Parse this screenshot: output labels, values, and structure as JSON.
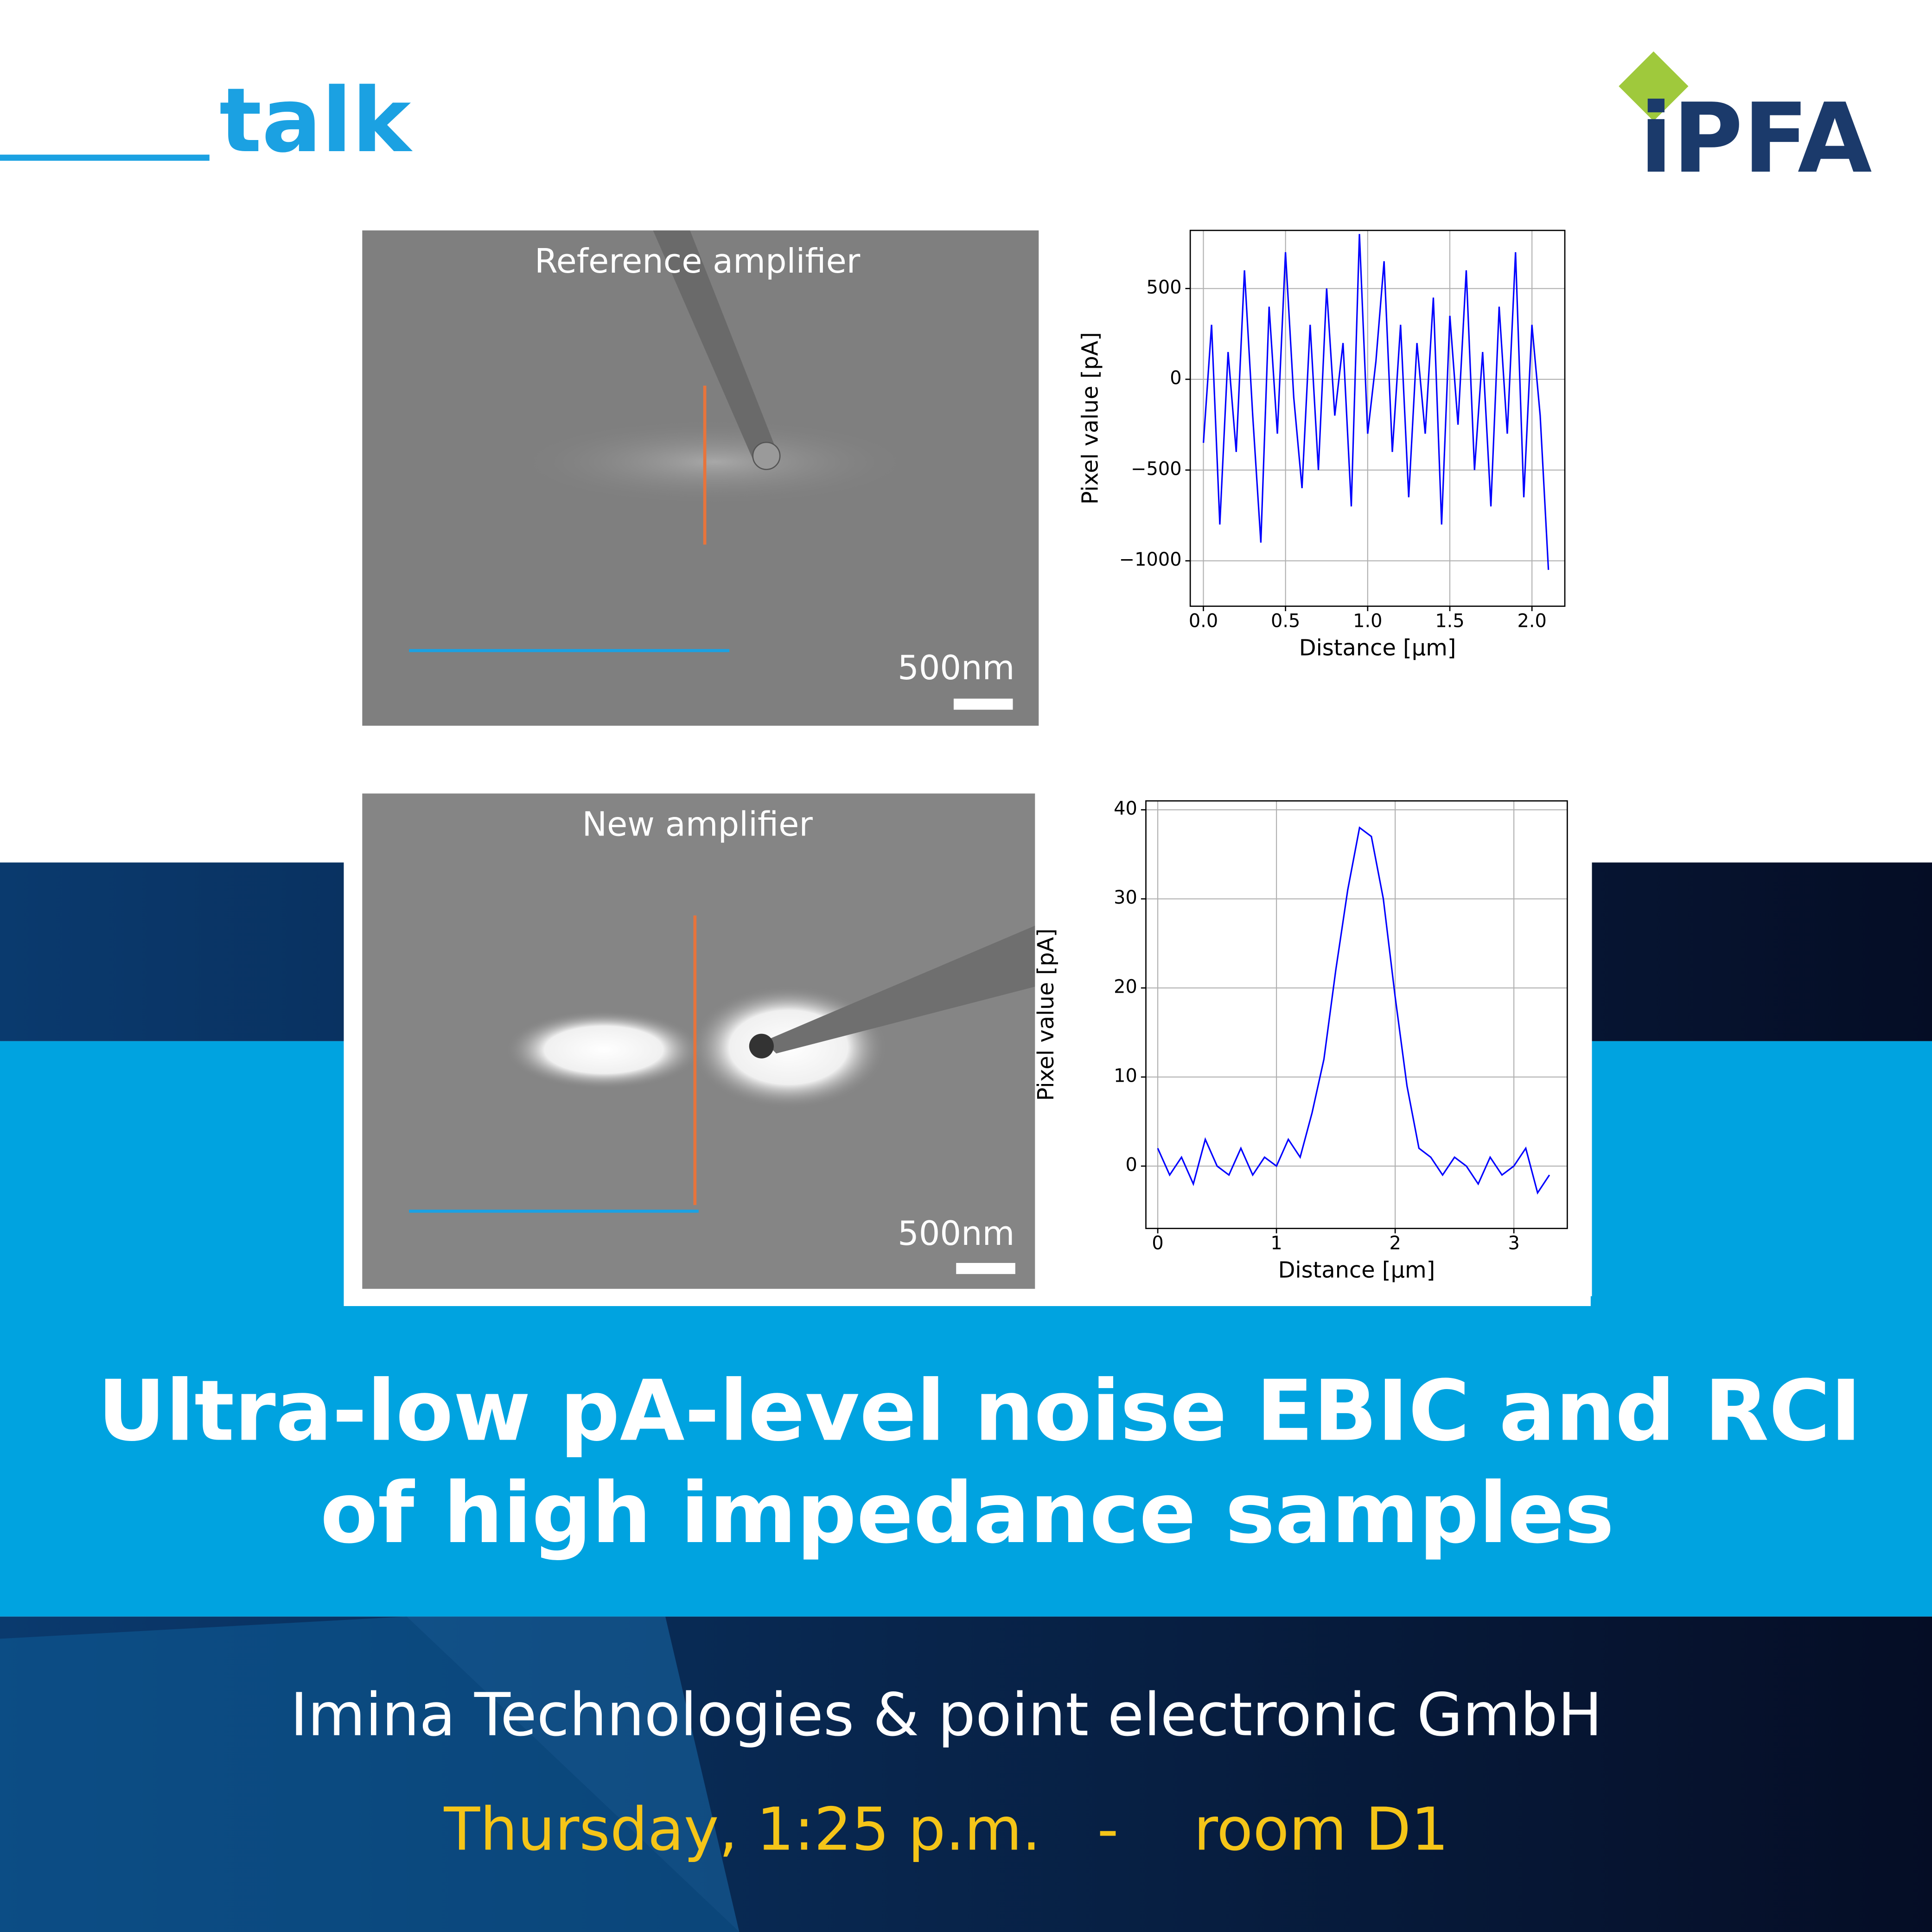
{
  "header": {
    "label": "talk",
    "logo": "iPFA"
  },
  "images": [
    {
      "caption": "Reference amplifier",
      "scale_bar": "500nm"
    },
    {
      "caption": "New amplifier",
      "scale_bar": "500nm"
    }
  ],
  "chart_data": [
    {
      "type": "line",
      "xlabel": "Distance [µm]",
      "ylabel": "Pixel value [pA]",
      "color": "#0000ff",
      "grid": true,
      "x": [
        0,
        0.05,
        0.1,
        0.15,
        0.2,
        0.25,
        0.3,
        0.35,
        0.4,
        0.45,
        0.5,
        0.55,
        0.6,
        0.65,
        0.7,
        0.75,
        0.8,
        0.85,
        0.9,
        0.95,
        1.0,
        1.05,
        1.1,
        1.15,
        1.2,
        1.25,
        1.3,
        1.35,
        1.4,
        1.45,
        1.5,
        1.55,
        1.6,
        1.65,
        1.7,
        1.75,
        1.8,
        1.85,
        1.9,
        1.95,
        2.0,
        2.05,
        2.1
      ],
      "values": [
        -350,
        300,
        -800,
        150,
        -400,
        600,
        -200,
        -900,
        400,
        -300,
        700,
        -100,
        -600,
        300,
        -500,
        500,
        -200,
        200,
        -700,
        800,
        -300,
        100,
        650,
        -400,
        300,
        -650,
        200,
        -300,
        450,
        -800,
        350,
        -250,
        600,
        -500,
        150,
        -700,
        400,
        -300,
        700,
        -650,
        300,
        -200,
        -1050
      ],
      "xlim": [
        -0.08,
        2.2
      ],
      "ylim": [
        -1250,
        820
      ],
      "xticks": [
        {
          "value": 0,
          "label": "0.0"
        },
        0.5,
        {
          "value": 1,
          "label": "1.0"
        },
        1.5,
        {
          "value": 2,
          "label": "2.0"
        }
      ],
      "yticks": [
        {
          "value": -1000,
          "label": "−1000"
        },
        {
          "value": -500,
          "label": "−500"
        },
        0,
        500
      ]
    },
    {
      "type": "line",
      "xlabel": "Distance [µm]",
      "ylabel": "Pixel value [pA]",
      "color": "#0000ff",
      "grid": true,
      "x": [
        0,
        0.1,
        0.2,
        0.3,
        0.4,
        0.5,
        0.6,
        0.7,
        0.8,
        0.9,
        1.0,
        1.1,
        1.2,
        1.3,
        1.4,
        1.5,
        1.6,
        1.7,
        1.8,
        1.9,
        2.0,
        2.1,
        2.2,
        2.3,
        2.4,
        2.5,
        2.6,
        2.7,
        2.8,
        2.9,
        3.0,
        3.1,
        3.2,
        3.3
      ],
      "values": [
        2,
        -1,
        1,
        -2,
        3,
        0,
        -1,
        2,
        -1,
        1,
        0,
        3,
        1,
        6,
        12,
        22,
        31,
        38,
        37,
        30,
        19,
        9,
        2,
        1,
        -1,
        1,
        0,
        -2,
        1,
        -1,
        0,
        2,
        -3,
        -1
      ],
      "xlim": [
        -0.1,
        3.45
      ],
      "ylim": [
        -7,
        41
      ],
      "xticks": [
        0,
        1,
        2,
        3
      ],
      "yticks": [
        0,
        10,
        20,
        30,
        40
      ]
    }
  ],
  "title": [
    "Ultra-low pA-level noise EBIC and RCI",
    "of high impedance samples"
  ],
  "presenter": "Imina Technologies & point electronic GmbH",
  "schedule": "Thursday, 1:25 p.m.   -    room D1"
}
